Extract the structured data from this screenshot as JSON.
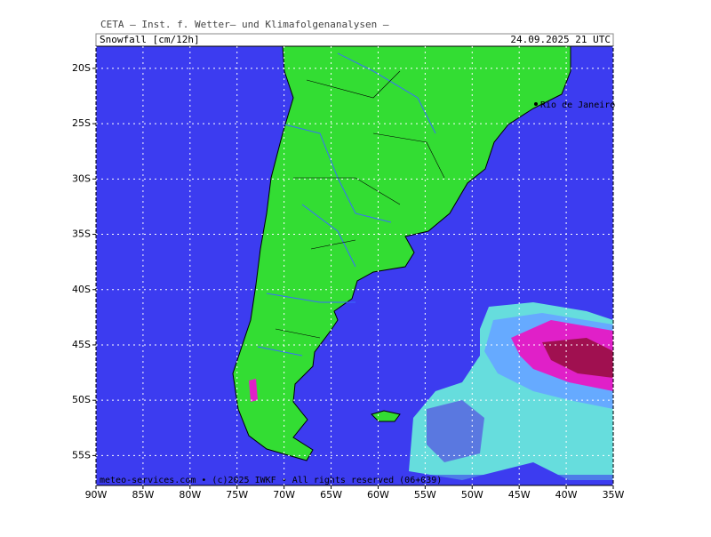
{
  "header": {
    "title": "CETA — Inst. f. Wetter— und Klimafolgenanalysen —",
    "variable": "Snowfall [cm/12h]",
    "valid_time": "24.09.2025 21 UTC"
  },
  "map": {
    "xlim": [
      -90,
      -35
    ],
    "ylim": [
      -57.7,
      -18.0
    ],
    "xticks": [
      {
        "value": -90,
        "label": "90W"
      },
      {
        "value": -85,
        "label": "85W"
      },
      {
        "value": -80,
        "label": "80W"
      },
      {
        "value": -75,
        "label": "75W"
      },
      {
        "value": -70,
        "label": "70W"
      },
      {
        "value": -65,
        "label": "65W"
      },
      {
        "value": -60,
        "label": "60W"
      },
      {
        "value": -55,
        "label": "55W"
      },
      {
        "value": -50,
        "label": "50W"
      },
      {
        "value": -45,
        "label": "45W"
      },
      {
        "value": -40,
        "label": "40W"
      },
      {
        "value": -35,
        "label": "35W"
      }
    ],
    "yticks": [
      {
        "value": -20,
        "label": "20S"
      },
      {
        "value": -25,
        "label": "25S"
      },
      {
        "value": -30,
        "label": "30S"
      },
      {
        "value": -35,
        "label": "35S"
      },
      {
        "value": -40,
        "label": "40S"
      },
      {
        "value": -45,
        "label": "45S"
      },
      {
        "value": -50,
        "label": "50S"
      },
      {
        "value": -55,
        "label": "55S"
      }
    ],
    "city": "Rio de Janeiro",
    "footer": "meteo-services.com • (c)2025 IWKF • All rights reserved (06+039)"
  }
}
